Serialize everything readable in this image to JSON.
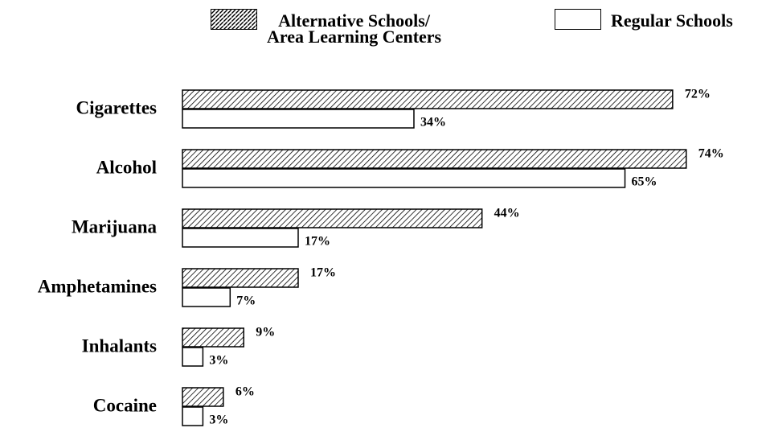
{
  "chart_data": {
    "type": "bar",
    "orientation": "horizontal",
    "categories": [
      "Cigarettes",
      "Alcohol",
      "Marijuana",
      "Amphetamines",
      "Inhalants",
      "Cocaine"
    ],
    "series": [
      {
        "name": "Alternative Schools/\nArea Learning Centers",
        "pattern": "hatch",
        "color": "#000000",
        "values": [
          72,
          74,
          44,
          17,
          9,
          6
        ],
        "value_labels": [
          "72%",
          "74%",
          "44%",
          "17%",
          "9%",
          "6%"
        ]
      },
      {
        "name": "Regular Schools",
        "pattern": "none",
        "color": "#000000",
        "values": [
          34,
          65,
          17,
          7,
          3,
          3
        ],
        "value_labels": [
          "34%",
          "65%",
          "17%",
          "7%",
          "3%",
          "3%"
        ]
      }
    ]
  }
}
